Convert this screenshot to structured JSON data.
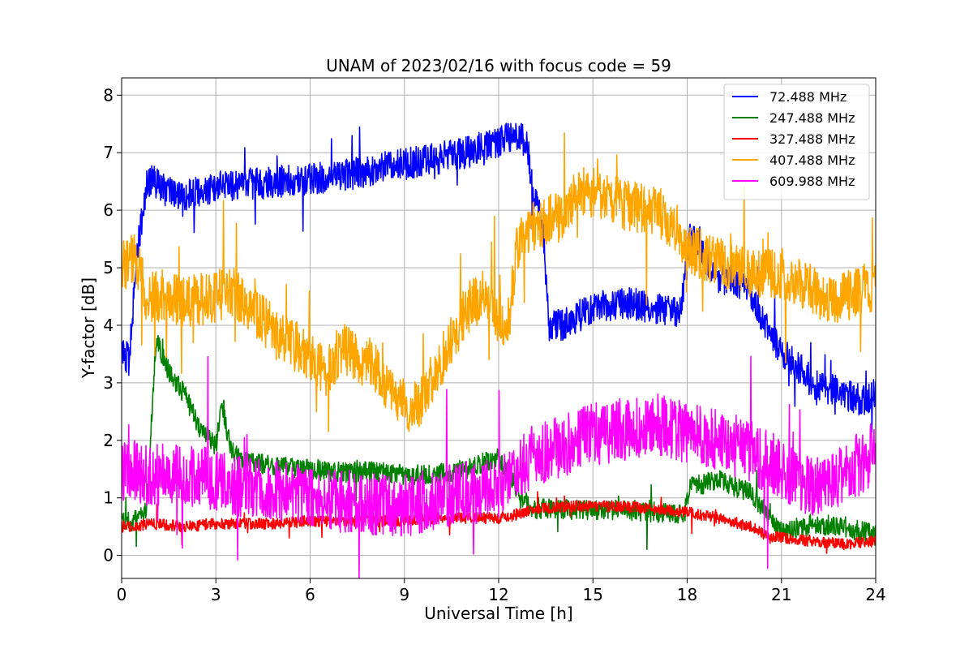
{
  "chart_data": {
    "type": "line",
    "title": "UNAM of 2023/02/16 with focus code = 59",
    "xlabel": "Universal Time [h]",
    "ylabel": "Y-factor [dB]",
    "xlim": [
      0,
      24
    ],
    "ylim": [
      -0.4,
      8.3
    ],
    "xticks": [
      0,
      3,
      6,
      9,
      12,
      15,
      18,
      21,
      24
    ],
    "yticks": [
      0,
      1,
      2,
      3,
      4,
      5,
      6,
      7,
      8
    ],
    "grid": true,
    "legend_position": "top-right",
    "series": [
      {
        "name": "72.488 MHz",
        "color": "#0000ff",
        "noise": 0.28,
        "x": [
          0,
          0.25,
          0.5,
          0.7,
          0.8,
          1.0,
          1.5,
          2.0,
          3.0,
          4.0,
          5.0,
          6.0,
          7.0,
          8.0,
          9.0,
          10.0,
          11.0,
          11.5,
          12.0,
          12.5,
          12.9,
          13.1,
          13.4,
          13.6,
          14.0,
          15.0,
          16.0,
          17.0,
          17.8,
          18.1,
          18.6,
          19.0,
          19.5,
          20.0,
          20.5,
          21.0,
          21.5,
          22.0,
          22.5,
          23.0,
          23.5,
          24.0
        ],
        "y": [
          3.5,
          3.4,
          5.4,
          6.0,
          6.5,
          6.5,
          6.3,
          6.25,
          6.4,
          6.45,
          6.5,
          6.55,
          6.6,
          6.7,
          6.8,
          6.9,
          7.0,
          7.1,
          7.2,
          7.3,
          7.2,
          6.3,
          5.8,
          4.0,
          4.0,
          4.3,
          4.4,
          4.3,
          4.2,
          5.6,
          5.1,
          4.8,
          4.8,
          4.6,
          4.0,
          3.5,
          3.3,
          3.0,
          2.9,
          2.8,
          2.7,
          2.8
        ]
      },
      {
        "name": "247.488 MHz",
        "color": "#008000",
        "noise": 0.18,
        "x": [
          0,
          0.5,
          0.8,
          1.1,
          1.5,
          2.0,
          2.5,
          3.0,
          3.2,
          3.5,
          4.0,
          5.0,
          6.0,
          7.0,
          8.0,
          9.0,
          10.0,
          11.0,
          12.0,
          13.0,
          14.0,
          15.0,
          16.0,
          17.0,
          17.9,
          18.1,
          19.0,
          20.0,
          21.0,
          22.0,
          23.0,
          24.0
        ],
        "y": [
          0.6,
          0.6,
          0.8,
          3.8,
          3.2,
          2.8,
          2.2,
          1.9,
          2.6,
          1.8,
          1.6,
          1.55,
          1.5,
          1.45,
          1.45,
          1.4,
          1.4,
          1.5,
          1.7,
          0.8,
          0.8,
          0.8,
          0.8,
          0.75,
          0.7,
          1.2,
          1.3,
          1.1,
          0.4,
          0.55,
          0.5,
          0.35
        ]
      },
      {
        "name": "327.488 MHz",
        "color": "#ff0000",
        "noise": 0.1,
        "x": [
          0,
          1,
          2,
          3,
          4,
          5,
          6,
          7,
          8,
          9,
          10,
          11,
          12,
          12.5,
          13,
          14,
          15,
          16,
          17,
          18,
          19,
          20,
          20.5,
          21,
          22,
          23,
          24
        ],
        "y": [
          0.5,
          0.55,
          0.5,
          0.55,
          0.55,
          0.55,
          0.6,
          0.6,
          0.6,
          0.6,
          0.65,
          0.65,
          0.65,
          0.7,
          0.8,
          0.85,
          0.85,
          0.85,
          0.8,
          0.75,
          0.65,
          0.5,
          0.35,
          0.3,
          0.25,
          0.2,
          0.25
        ]
      },
      {
        "name": "407.488 MHz",
        "color": "#ffa500",
        "noise": 0.45,
        "x": [
          0,
          0.4,
          0.8,
          1.0,
          2.0,
          3.0,
          3.5,
          4.0,
          5.0,
          6.0,
          6.5,
          7.0,
          8.0,
          9.0,
          9.5,
          10.0,
          11.0,
          11.5,
          12.0,
          12.3,
          12.6,
          13.0,
          13.5,
          14.0,
          14.5,
          15.0,
          16.0,
          17.0,
          17.5,
          18.0,
          18.5,
          19.0,
          20.0,
          21.0,
          22.0,
          22.5,
          23.0,
          24.0
        ],
        "y": [
          5.0,
          5.2,
          4.5,
          4.5,
          4.4,
          4.5,
          4.6,
          4.4,
          3.8,
          3.5,
          3.2,
          3.6,
          3.3,
          2.6,
          2.6,
          3.2,
          4.3,
          4.5,
          4.1,
          4.0,
          5.4,
          5.7,
          5.8,
          5.9,
          6.3,
          6.3,
          6.1,
          6.0,
          5.8,
          5.4,
          5.2,
          5.1,
          4.9,
          4.9,
          4.6,
          4.5,
          4.5,
          4.7
        ]
      },
      {
        "name": "609.988 MHz",
        "color": "#ff00ff",
        "noise": 0.55,
        "x": [
          0,
          1,
          2,
          3,
          4,
          5,
          6,
          7,
          8,
          9,
          10,
          11,
          12,
          12.5,
          13,
          14,
          15,
          16,
          17,
          18,
          19,
          20,
          21,
          22,
          23,
          24
        ],
        "y": [
          1.5,
          1.4,
          1.4,
          1.3,
          1.2,
          1.1,
          1.0,
          0.95,
          0.9,
          0.85,
          1.0,
          1.1,
          1.1,
          1.4,
          1.7,
          1.9,
          2.1,
          2.2,
          2.3,
          2.1,
          2.0,
          1.8,
          1.5,
          1.2,
          1.4,
          1.8
        ]
      }
    ]
  }
}
